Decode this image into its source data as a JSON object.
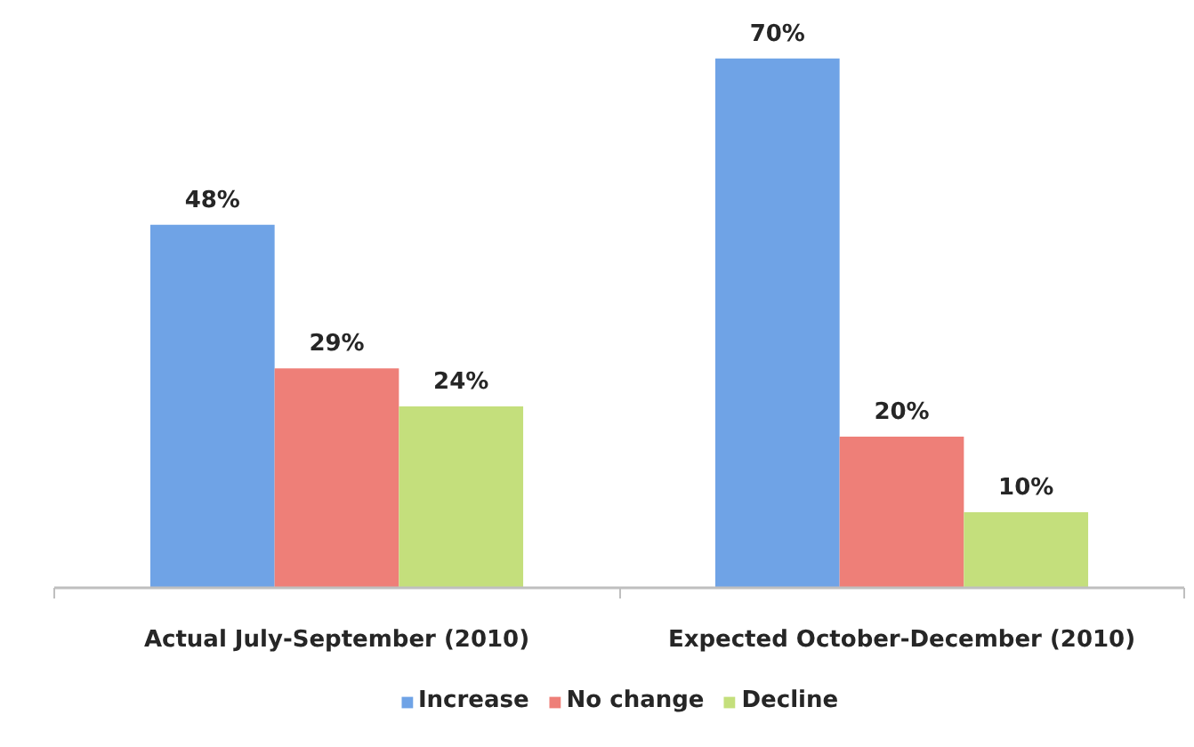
{
  "chart_data": {
    "type": "bar",
    "categories": [
      "Actual July-September (2010)",
      "Expected October-December (2010)"
    ],
    "series": [
      {
        "name": "Increase",
        "color": "#6fa3e6",
        "values": [
          48,
          70
        ],
        "value_labels": [
          "48%",
          "70%"
        ]
      },
      {
        "name": "No change",
        "color": "#ee7f78",
        "values": [
          29,
          20
        ],
        "value_labels": [
          "29%",
          "20%"
        ]
      },
      {
        "name": "Decline",
        "color": "#c4df7c",
        "values": [
          24,
          10
        ],
        "value_labels": [
          "24%",
          "10%"
        ]
      }
    ],
    "tick_labels": "x",
    "grid": false,
    "legend": "bottom"
  }
}
